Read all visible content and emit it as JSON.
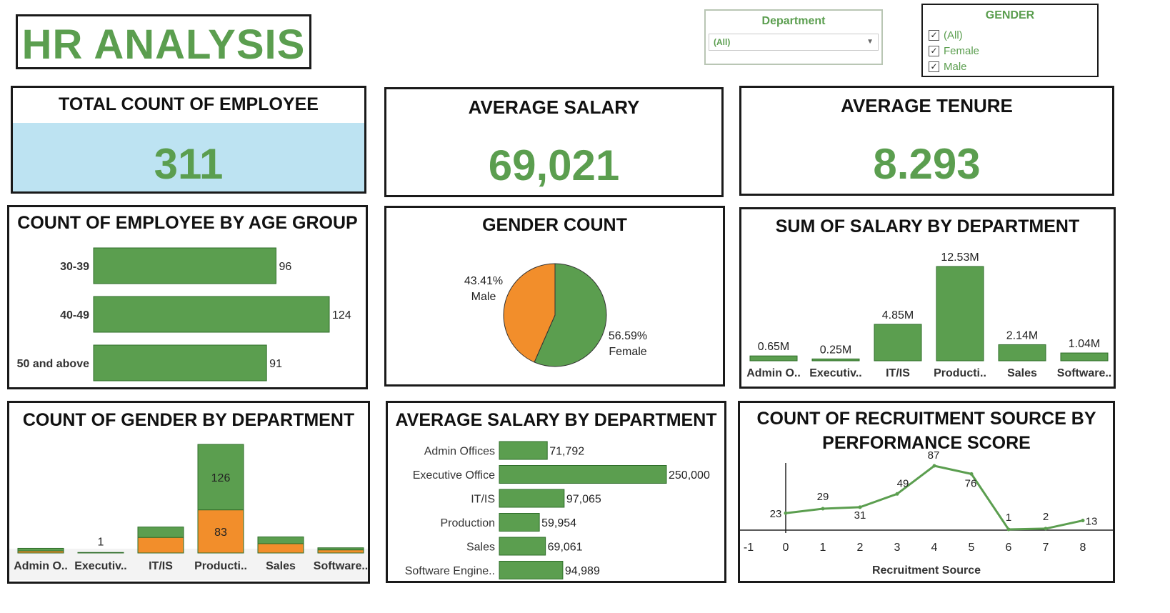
{
  "header": {
    "title": "HR ANALYSIS"
  },
  "filters": {
    "department": {
      "label": "Department",
      "selected": "(All)"
    },
    "gender": {
      "label": "GENDER",
      "options": [
        {
          "label": "(All)",
          "checked": true
        },
        {
          "label": "Female",
          "checked": true
        },
        {
          "label": "Male",
          "checked": true
        }
      ]
    }
  },
  "kpis": {
    "total_count": {
      "label": "TOTAL COUNT OF EMPLOYEE",
      "value": "311"
    },
    "average_salary": {
      "label": "AVERAGE SALARY",
      "value": "69,021"
    },
    "average_tenure": {
      "label": "AVERAGE TENURE",
      "value": "8.293"
    }
  },
  "colors": {
    "green": "#5b9e4f",
    "orange": "#f28e2b",
    "kpi_highlight": "#bde3f2"
  },
  "chart_data": [
    {
      "id": "age",
      "type": "bar",
      "orientation": "horizontal",
      "title": "COUNT OF EMPLOYEE BY AGE GROUP",
      "categories": [
        "30-39",
        "40-49",
        "50 and above"
      ],
      "values": [
        96,
        124,
        91
      ],
      "labels": [
        "96",
        "124",
        "91"
      ]
    },
    {
      "id": "gender",
      "type": "pie",
      "title": "GENDER COUNT",
      "slices": [
        {
          "name": "Female",
          "value": 56.59,
          "label": "56.59%"
        },
        {
          "name": "Male",
          "value": 43.41,
          "label": "43.41%"
        }
      ]
    },
    {
      "id": "salary_sum",
      "type": "bar",
      "title": "SUM OF SALARY BY DEPARTMENT",
      "categories": [
        "Admin O..",
        "Executiv..",
        "IT/IS",
        "Producti..",
        "Sales",
        "Software.."
      ],
      "values": [
        0.65,
        0.25,
        4.85,
        12.53,
        2.14,
        1.04
      ],
      "labels": [
        "0.65M",
        "0.25M",
        "4.85M",
        "12.53M",
        "2.14M",
        "1.04M"
      ]
    },
    {
      "id": "gender_dept",
      "type": "bar",
      "stacked": true,
      "title": "COUNT OF GENDER BY DEPARTMENT",
      "categories": [
        "Admin O..",
        "Executiv..",
        "IT/IS",
        "Producti..",
        "Sales",
        "Software.."
      ],
      "series": [
        {
          "name": "Female",
          "values": [
            5,
            0,
            20,
            126,
            13,
            4
          ]
        },
        {
          "name": "Male",
          "values": [
            4,
            1,
            30,
            83,
            18,
            6
          ]
        }
      ],
      "labels": [
        "",
        "1",
        "",
        "126",
        "",
        ""
      ],
      "male_labels": [
        "",
        "",
        "",
        "83",
        "",
        ""
      ]
    },
    {
      "id": "avg_salary_dept",
      "type": "bar",
      "orientation": "horizontal",
      "title": "AVERAGE SALARY BY DEPARTMENT",
      "categories": [
        "Admin Offices",
        "Executive Office",
        "IT/IS",
        "Production",
        "Sales",
        "Software Engine.."
      ],
      "values": [
        71792,
        250000,
        97065,
        59954,
        69061,
        94989
      ],
      "labels": [
        "71,792",
        "250,000",
        "97,065",
        "59,954",
        "69,061",
        "94,989"
      ]
    },
    {
      "id": "recruit",
      "type": "line",
      "title": "COUNT OF RECRUITMENT SOURCE BY PERFORMANCE SCORE",
      "xlabel": "Recruitment Source",
      "x": [
        0,
        1,
        2,
        3,
        4,
        5,
        6,
        7,
        8
      ],
      "values": [
        23,
        29,
        31,
        49,
        87,
        76,
        1,
        2,
        13
      ],
      "labels": [
        "23",
        "29",
        "31",
        "49",
        "87",
        "76",
        "1",
        "2",
        "13"
      ],
      "xticks": [
        "-1",
        "0",
        "1",
        "2",
        "3",
        "4",
        "5",
        "6",
        "7",
        "8",
        "9"
      ],
      "xlim": [
        -1,
        9
      ]
    }
  ]
}
